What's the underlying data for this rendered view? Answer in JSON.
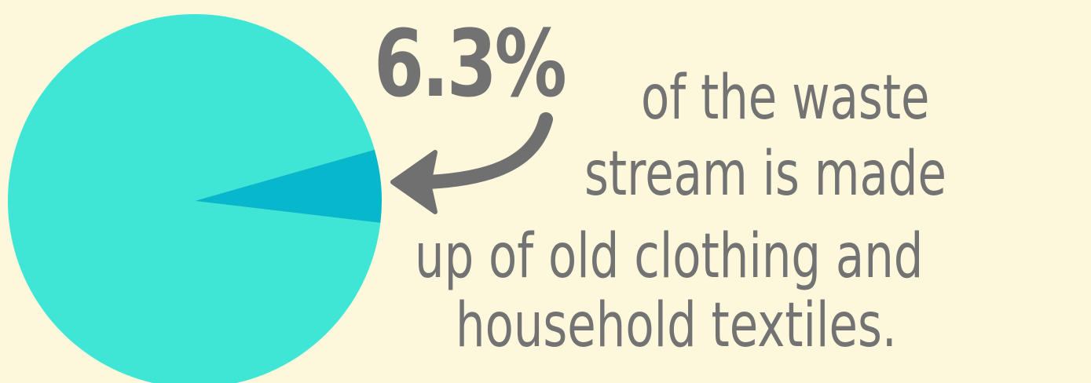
{
  "chart_data": {
    "type": "pie",
    "slices": [
      {
        "label": "",
        "value": 93.7,
        "color": "#3fe5d5"
      },
      {
        "label": "",
        "value": 6.3,
        "color": "#07b8cc"
      }
    ]
  },
  "headline": {
    "stat": "6.3%",
    "lines": [
      "of the waste",
      "stream is made",
      "up of old clothing and",
      "household textiles."
    ]
  },
  "colors": {
    "background": "#fdf7dc",
    "text": "#737373",
    "arrow": "#707070"
  },
  "icons": {
    "arrow": "curved-arrow-left-icon"
  }
}
